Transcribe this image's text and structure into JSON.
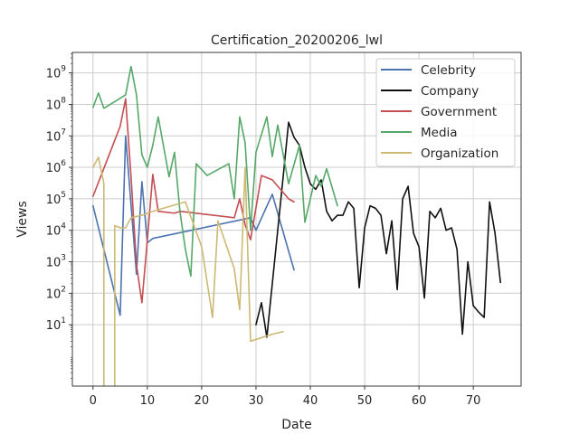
{
  "chart_data": {
    "type": "line",
    "title": "Certification_20200206_lwl",
    "xlabel": "Date",
    "ylabel": "Views",
    "xlim": [
      -3.8,
      78.8
    ],
    "ylim_log10": [
      -0.95,
      9.65
    ],
    "yscale": "log",
    "x_ticks": [
      0,
      10,
      20,
      30,
      40,
      50,
      60,
      70
    ],
    "y_tick_exponents": [
      1,
      2,
      3,
      4,
      5,
      6,
      7,
      8,
      9
    ],
    "grid": true,
    "legend_placement": "top-right",
    "series": [
      {
        "name": "Celebrity",
        "color": "#4c72b0",
        "points": [
          [
            0,
            60000
          ],
          [
            5,
            20
          ],
          [
            6,
            10000000
          ],
          [
            8,
            400
          ],
          [
            9,
            350000
          ],
          [
            10,
            4000
          ],
          [
            11,
            5500
          ],
          [
            29,
            25000
          ],
          [
            30,
            10000
          ],
          [
            33,
            140000
          ],
          [
            37,
            550
          ]
        ]
      },
      {
        "name": "Company",
        "color": "#111111",
        "points": [
          [
            30,
            10
          ],
          [
            31,
            50
          ],
          [
            32,
            4
          ],
          [
            33,
            200
          ],
          [
            34,
            10000
          ],
          [
            35,
            500000
          ],
          [
            36,
            27000000
          ],
          [
            37,
            9000000
          ],
          [
            38,
            5000000
          ],
          [
            39,
            1000000
          ],
          [
            40,
            300000
          ],
          [
            41,
            200000
          ],
          [
            42,
            400000
          ],
          [
            43,
            40000
          ],
          [
            44,
            20000
          ],
          [
            45,
            30000
          ],
          [
            46,
            30000
          ],
          [
            47,
            80000
          ],
          [
            48,
            50000
          ],
          [
            49,
            150
          ],
          [
            50,
            12000
          ],
          [
            51,
            60000
          ],
          [
            52,
            50000
          ],
          [
            53,
            30000
          ],
          [
            54,
            1800
          ],
          [
            55,
            20000
          ],
          [
            56,
            130
          ],
          [
            57,
            100000
          ],
          [
            58,
            250000
          ],
          [
            59,
            8000
          ],
          [
            60,
            3000
          ],
          [
            61,
            70
          ],
          [
            62,
            40000
          ],
          [
            63,
            25000
          ],
          [
            64,
            50000
          ],
          [
            65,
            10000
          ],
          [
            66,
            12000
          ],
          [
            67,
            2500
          ],
          [
            68,
            5
          ],
          [
            69,
            1000
          ],
          [
            70,
            40
          ],
          [
            71,
            25
          ],
          [
            72,
            17
          ],
          [
            73,
            80000
          ],
          [
            74,
            8000
          ],
          [
            75,
            220
          ]
        ]
      },
      {
        "name": "Government",
        "color": "#c44e52",
        "points": [
          [
            0,
            120000
          ],
          [
            5,
            20000000
          ],
          [
            6,
            150000000
          ],
          [
            7,
            500000
          ],
          [
            8,
            800
          ],
          [
            9,
            50
          ],
          [
            10,
            5000
          ],
          [
            11,
            600000
          ],
          [
            12,
            40000
          ],
          [
            15,
            35000
          ],
          [
            16,
            40000
          ],
          [
            26,
            25000
          ],
          [
            27,
            100000
          ],
          [
            28,
            15000
          ],
          [
            29,
            5000
          ],
          [
            31,
            550000
          ],
          [
            33,
            400000
          ],
          [
            36,
            100000
          ],
          [
            37,
            80000
          ]
        ]
      },
      {
        "name": "Media",
        "color": "#55a868",
        "points": [
          [
            0,
            80000000
          ],
          [
            1,
            230000000
          ],
          [
            2,
            75000000
          ],
          [
            6,
            200000000
          ],
          [
            7,
            1600000000
          ],
          [
            8,
            200000000
          ],
          [
            9,
            2500000
          ],
          [
            10,
            1000000
          ],
          [
            11,
            5000000
          ],
          [
            12,
            40000000
          ],
          [
            14,
            500000
          ],
          [
            15,
            3000000
          ],
          [
            16,
            40000
          ],
          [
            17,
            2500
          ],
          [
            18,
            350
          ],
          [
            19,
            1300000
          ],
          [
            21,
            550000
          ],
          [
            25,
            1300000
          ],
          [
            26,
            100000
          ],
          [
            27,
            40000000
          ],
          [
            28,
            6000000
          ],
          [
            29,
            10000
          ],
          [
            30,
            3000000
          ],
          [
            32,
            40000000
          ],
          [
            33,
            2200000
          ],
          [
            34,
            22000000
          ],
          [
            36,
            300000
          ],
          [
            38,
            5000000
          ],
          [
            39,
            18000
          ],
          [
            41,
            550000
          ],
          [
            42,
            250000
          ],
          [
            43,
            900000
          ],
          [
            45,
            60000
          ]
        ]
      },
      {
        "name": "Organization",
        "color": "#ccb974",
        "points": [
          [
            0,
            1000000
          ],
          [
            1,
            2100000
          ],
          [
            2,
            300000
          ],
          [
            2,
            0.1
          ],
          [
            4,
            0.1
          ],
          [
            4,
            14000
          ],
          [
            5,
            12000
          ],
          [
            6,
            12000
          ],
          [
            7,
            25000
          ],
          [
            9,
            30000
          ],
          [
            11,
            40000
          ],
          [
            17,
            80000
          ],
          [
            20,
            3000
          ],
          [
            22,
            17
          ],
          [
            23,
            20000
          ],
          [
            26,
            600
          ],
          [
            27,
            30
          ],
          [
            28,
            1000000
          ],
          [
            29,
            3
          ],
          [
            33,
            5
          ],
          [
            35,
            6
          ]
        ]
      }
    ]
  }
}
